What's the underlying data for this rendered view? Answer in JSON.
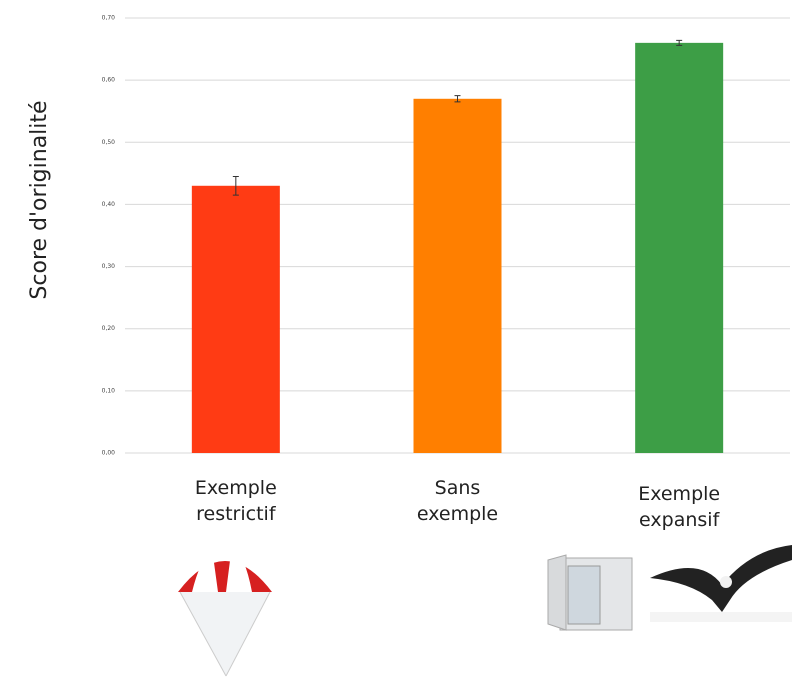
{
  "chart_data": {
    "type": "bar",
    "ylabel": "Score d'originalité",
    "categories": [
      "Exemple restrictif",
      "Sans exemple",
      "Exemple expansif"
    ],
    "values": [
      0.43,
      0.57,
      0.66
    ],
    "errors": [
      0.015,
      0.005,
      0.004
    ],
    "colors": [
      "#ff3b14",
      "#ff7f00",
      "#3d9e46"
    ],
    "ylim": [
      0,
      0.7
    ],
    "yticks": [
      {
        "value": 0,
        "label": "0,00"
      },
      {
        "value": 0.1,
        "label": "0,10"
      },
      {
        "value": 0.2,
        "label": "0,20"
      },
      {
        "value": 0.3,
        "label": "0,30"
      },
      {
        "value": 0.4,
        "label": "0,40"
      },
      {
        "value": 0.5,
        "label": "0,50"
      },
      {
        "value": 0.6,
        "label": "0,60"
      },
      {
        "value": 0.7,
        "label": "0,70"
      }
    ],
    "grid": true
  }
}
